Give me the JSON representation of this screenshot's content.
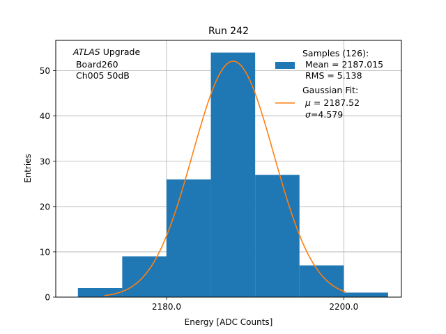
{
  "chart_data": {
    "type": "bar",
    "title": "Run 242",
    "xlabel": "Energy [ADC Counts]",
    "ylabel": "Entries",
    "xlim": [
      2167.5,
      2206.5
    ],
    "ylim": [
      0,
      56.7
    ],
    "grid": true,
    "x_ticks": [
      2180.0,
      2200.0
    ],
    "x_tick_labels": [
      "2180.0",
      "2200.0"
    ],
    "y_ticks": [
      0,
      10,
      20,
      30,
      40,
      50
    ],
    "y_tick_labels": [
      "0",
      "10",
      "20",
      "30",
      "40",
      "50"
    ],
    "bins": [
      {
        "x0": 2170,
        "x1": 2175,
        "count": 2
      },
      {
        "x0": 2175,
        "x1": 2180,
        "count": 9
      },
      {
        "x0": 2180,
        "x1": 2185,
        "count": 26
      },
      {
        "x0": 2185,
        "x1": 2190,
        "count": 54
      },
      {
        "x0": 2190,
        "x1": 2195,
        "count": 27
      },
      {
        "x0": 2195,
        "x1": 2200,
        "count": 7
      },
      {
        "x0": 2200,
        "x1": 2205,
        "count": 1
      }
    ],
    "bar_color": "#1f77b4",
    "fit": {
      "type": "gaussian",
      "mu": 2187.52,
      "sigma": 4.579,
      "amplitude": 52.1,
      "x_range": [
        2173,
        2200.2
      ],
      "color": "#ff7f0e"
    },
    "legend": {
      "placement": "top-right",
      "entries": [
        {
          "line1": "Samples (126):",
          "line2": " Mean = 2187.015",
          "line3": " RMS = 5.138"
        },
        {
          "line1": "Gaussian Fit:",
          "line2_symbol": "μ",
          "line2_rest": " = 2187.52",
          "line3_symbol": "σ",
          "line3_rest": "=4.579"
        }
      ]
    },
    "annotation": {
      "italic": "ATLAS",
      "rest": " Upgrade",
      "line2": " Board260",
      "line3": " Ch005 50dB"
    }
  }
}
